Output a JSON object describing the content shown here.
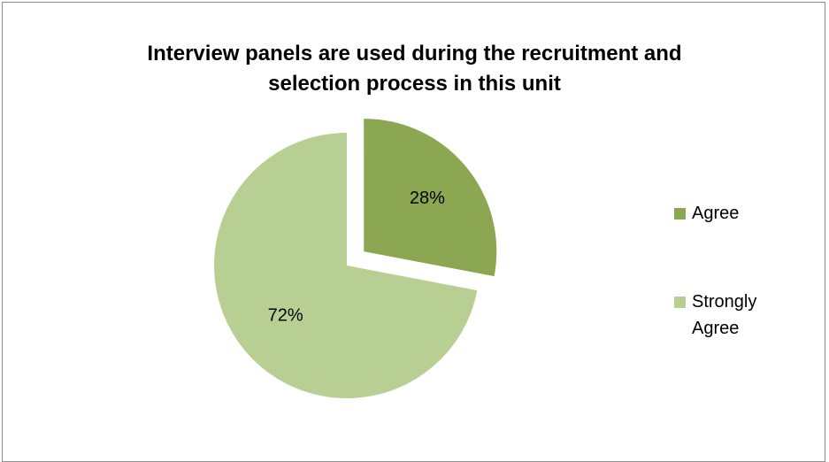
{
  "chart_data": {
    "type": "pie",
    "title_lines": [
      "Interview panels are used during the recruitment and",
      "selection process in this unit"
    ],
    "slices": [
      {
        "label": "Agree",
        "value": 28,
        "display": "28%",
        "color": "#8ca752",
        "exploded": true
      },
      {
        "label": "Strongly Agree",
        "value": 72,
        "display": "72%",
        "color": "#b8cf94",
        "exploded": false
      }
    ],
    "legend": {
      "position": "right",
      "items": [
        {
          "lines": [
            "Agree"
          ],
          "color": "#8ca752"
        },
        {
          "lines": [
            "Strongly",
            "Agree"
          ],
          "color": "#b8cf94"
        }
      ]
    },
    "start_angle": "12 o'clock, clockwise"
  }
}
